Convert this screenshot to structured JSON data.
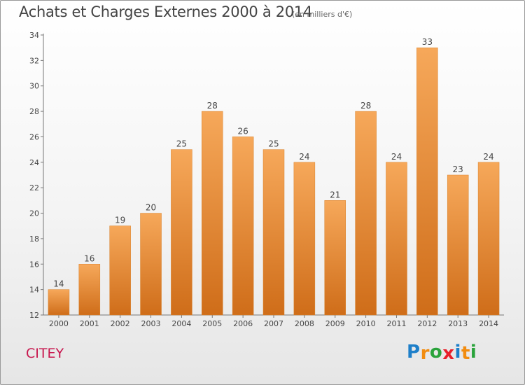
{
  "title": "Achats et Charges Externes 2000 à 2014",
  "unit": "(en milliers d'€)",
  "commune": "CITEY",
  "logo": {
    "letters": [
      "P",
      "r",
      "o",
      "x",
      "i",
      "t",
      "i"
    ],
    "colors": [
      "#1e7fc9",
      "#f28c0f",
      "#2aa33b",
      "#e8202a",
      "#1e7fc9",
      "#f28c0f",
      "#2aa33b"
    ]
  },
  "colors": {
    "bar_top": "#f6a85a",
    "bar_bottom": "#cf6d19",
    "commune": "#c8174e"
  },
  "chart_data": {
    "type": "bar",
    "title": "Achats et Charges Externes 2000 à 2014",
    "subtitle": "(en milliers d'€)",
    "categories": [
      "2000",
      "2001",
      "2002",
      "2003",
      "2004",
      "2005",
      "2006",
      "2007",
      "2008",
      "2009",
      "2010",
      "2011",
      "2012",
      "2013",
      "2014"
    ],
    "values": [
      14,
      16,
      19,
      20,
      25,
      28,
      26,
      25,
      24,
      21,
      28,
      24,
      33,
      23,
      24
    ],
    "ylim": [
      12,
      34
    ],
    "yticks": [
      12,
      14,
      16,
      18,
      20,
      22,
      24,
      26,
      28,
      30,
      32,
      34
    ],
    "grid": false,
    "xlabel": "",
    "ylabel": ""
  }
}
